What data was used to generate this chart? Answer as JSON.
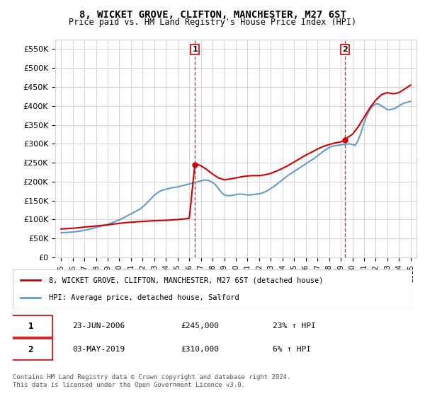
{
  "title": "8, WICKET GROVE, CLIFTON, MANCHESTER, M27 6ST",
  "subtitle": "Price paid vs. HM Land Registry's House Price Index (HPI)",
  "legend_line1": "8, WICKET GROVE, CLIFTON, MANCHESTER, M27 6ST (detached house)",
  "legend_line2": "HPI: Average price, detached house, Salford",
  "annotation1_label": "1",
  "annotation1_date": "23-JUN-2006",
  "annotation1_price": "£245,000",
  "annotation1_hpi": "23% ↑ HPI",
  "annotation2_label": "2",
  "annotation2_date": "03-MAY-2019",
  "annotation2_price": "£310,000",
  "annotation2_hpi": "6% ↑ HPI",
  "footer": "Contains HM Land Registry data © Crown copyright and database right 2024.\nThis data is licensed under the Open Government Licence v3.0.",
  "property_color": "#cc0000",
  "hpi_color": "#6699cc",
  "vline_color": "#cc0000",
  "event1_x": 2006.48,
  "event1_y": 245000,
  "event2_x": 2019.34,
  "event2_y": 310000,
  "ylim": [
    0,
    575000
  ],
  "xlim": [
    1994.5,
    2025.5
  ],
  "yticks": [
    0,
    50000,
    100000,
    150000,
    200000,
    250000,
    300000,
    350000,
    400000,
    450000,
    500000,
    550000
  ],
  "ytick_labels": [
    "£0",
    "£50K",
    "£100K",
    "£150K",
    "£200K",
    "£250K",
    "£300K",
    "£350K",
    "£400K",
    "£450K",
    "£500K",
    "£550K"
  ],
  "xticks": [
    1995,
    1996,
    1997,
    1998,
    1999,
    2000,
    2001,
    2002,
    2003,
    2004,
    2005,
    2006,
    2007,
    2008,
    2009,
    2010,
    2011,
    2012,
    2013,
    2014,
    2015,
    2016,
    2017,
    2018,
    2019,
    2020,
    2021,
    2022,
    2023,
    2024,
    2025
  ],
  "hpi_x": [
    1995,
    1995.25,
    1995.5,
    1995.75,
    1996,
    1996.25,
    1996.5,
    1996.75,
    1997,
    1997.25,
    1997.5,
    1997.75,
    1998,
    1998.25,
    1998.5,
    1998.75,
    1999,
    1999.25,
    1999.5,
    1999.75,
    2000,
    2000.25,
    2000.5,
    2000.75,
    2001,
    2001.25,
    2001.5,
    2001.75,
    2002,
    2002.25,
    2002.5,
    2002.75,
    2003,
    2003.25,
    2003.5,
    2003.75,
    2004,
    2004.25,
    2004.5,
    2004.75,
    2005,
    2005.25,
    2005.5,
    2005.75,
    2006,
    2006.25,
    2006.5,
    2006.75,
    2007,
    2007.25,
    2007.5,
    2007.75,
    2008,
    2008.25,
    2008.5,
    2008.75,
    2009,
    2009.25,
    2009.5,
    2009.75,
    2010,
    2010.25,
    2010.5,
    2010.75,
    2011,
    2011.25,
    2011.5,
    2011.75,
    2012,
    2012.25,
    2012.5,
    2012.75,
    2013,
    2013.25,
    2013.5,
    2013.75,
    2014,
    2014.25,
    2014.5,
    2014.75,
    2015,
    2015.25,
    2015.5,
    2015.75,
    2016,
    2016.25,
    2016.5,
    2016.75,
    2017,
    2017.25,
    2017.5,
    2017.75,
    2018,
    2018.25,
    2018.5,
    2018.75,
    2019,
    2019.25,
    2019.5,
    2019.75,
    2020,
    2020.25,
    2020.5,
    2020.75,
    2021,
    2021.25,
    2021.5,
    2021.75,
    2022,
    2022.25,
    2022.5,
    2022.75,
    2023,
    2023.25,
    2023.5,
    2023.75,
    2024,
    2024.25,
    2024.5,
    2024.75,
    2025
  ],
  "hpi_y": [
    65000,
    65500,
    66000,
    66500,
    67000,
    68000,
    69000,
    70000,
    71500,
    73000,
    75000,
    77000,
    79000,
    81000,
    83000,
    85000,
    87000,
    90000,
    93000,
    96000,
    99000,
    103000,
    107000,
    111000,
    115000,
    119000,
    123000,
    127000,
    133000,
    140000,
    148000,
    156000,
    164000,
    170000,
    175000,
    178000,
    180000,
    182000,
    184000,
    185000,
    186000,
    188000,
    190000,
    192000,
    194000,
    196000,
    198000,
    200000,
    202000,
    204000,
    204000,
    202000,
    198000,
    192000,
    182000,
    172000,
    165000,
    163000,
    163000,
    164000,
    166000,
    167000,
    167000,
    166000,
    165000,
    165000,
    166000,
    167000,
    168000,
    170000,
    173000,
    177000,
    182000,
    187000,
    193000,
    199000,
    205000,
    211000,
    217000,
    222000,
    227000,
    232000,
    237000,
    242000,
    247000,
    252000,
    257000,
    262000,
    268000,
    274000,
    280000,
    285000,
    290000,
    293000,
    295000,
    296000,
    297000,
    298000,
    299000,
    300000,
    298000,
    296000,
    310000,
    330000,
    355000,
    375000,
    390000,
    400000,
    405000,
    405000,
    400000,
    395000,
    390000,
    390000,
    392000,
    395000,
    400000,
    405000,
    408000,
    410000,
    412000
  ],
  "prop_x": [
    1995,
    1996,
    1997,
    1998,
    1999,
    2000,
    2001,
    2002,
    2003,
    2004,
    2005,
    2006,
    2006.48,
    2006.5,
    2007,
    2007.5,
    2008,
    2008.5,
    2009,
    2009.5,
    2010,
    2010.5,
    2011,
    2011.5,
    2012,
    2012.5,
    2013,
    2013.5,
    2014,
    2014.5,
    2015,
    2015.5,
    2016,
    2016.5,
    2017,
    2017.5,
    2018,
    2018.5,
    2019,
    2019.34,
    2019.5,
    2020,
    2020.5,
    2021,
    2021.5,
    2022,
    2022.5,
    2023,
    2023.5,
    2024,
    2024.5,
    2025
  ],
  "prop_y": [
    75000,
    77000,
    80000,
    83000,
    86000,
    90000,
    93000,
    95000,
    97000,
    98000,
    100000,
    103000,
    245000,
    248000,
    242000,
    232000,
    220000,
    210000,
    205000,
    207000,
    210000,
    213000,
    215000,
    216000,
    216000,
    218000,
    222000,
    228000,
    235000,
    243000,
    252000,
    261000,
    270000,
    278000,
    286000,
    293000,
    298000,
    302000,
    305000,
    310000,
    315000,
    325000,
    345000,
    370000,
    395000,
    415000,
    430000,
    435000,
    432000,
    435000,
    445000,
    455000
  ]
}
